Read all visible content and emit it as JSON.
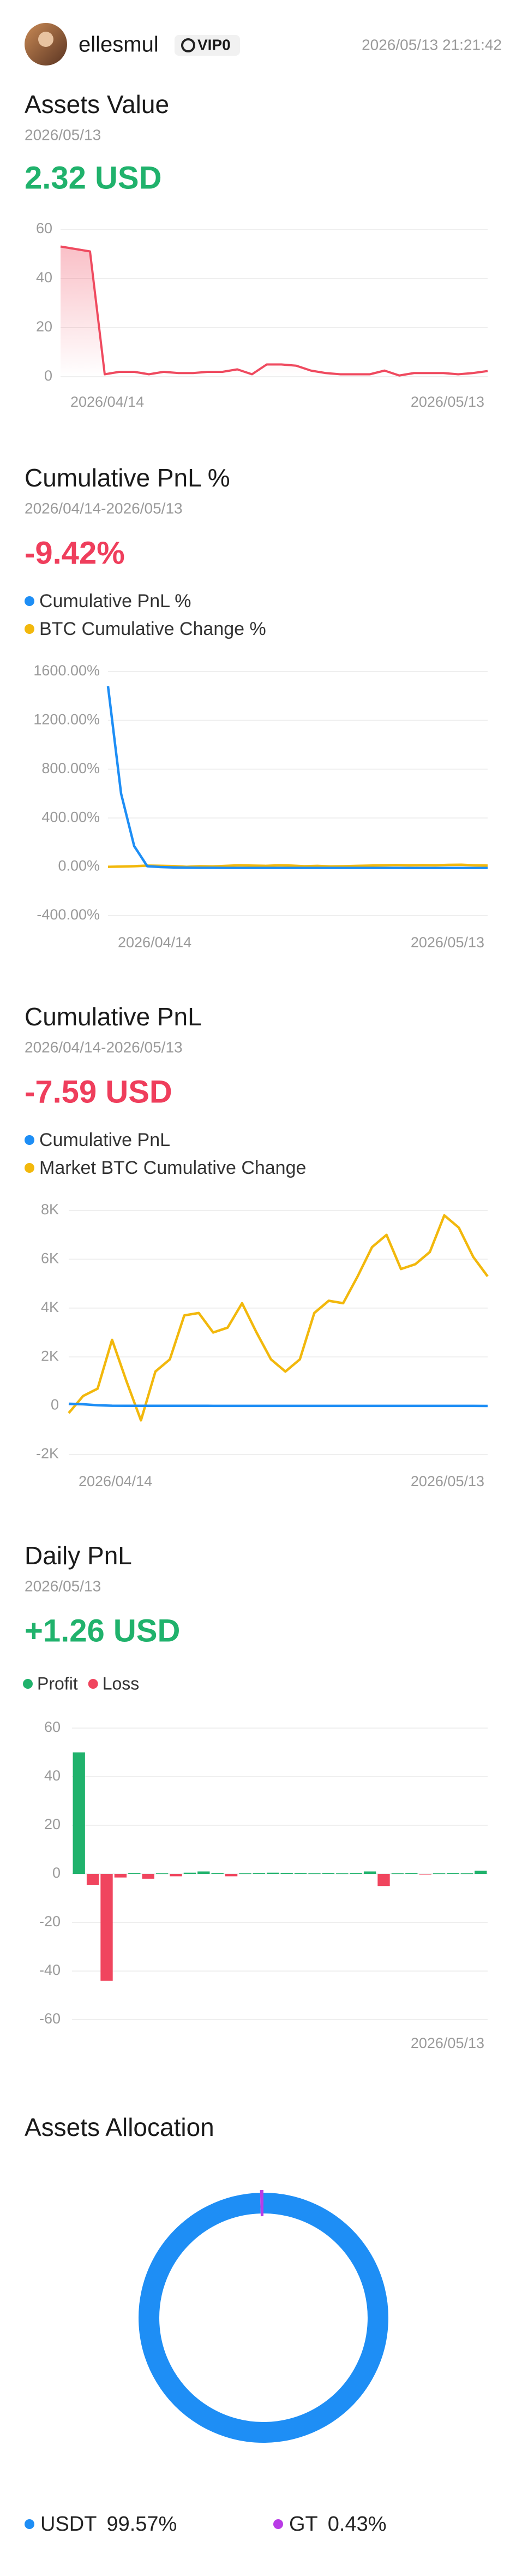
{
  "header": {
    "username": "ellesmul",
    "badge": "VIP0",
    "timestamp": "2026/05/13 21:21:42"
  },
  "chart_data": [
    {
      "type": "area",
      "title": "Assets Value",
      "subtitle": "2026/05/13",
      "headline": "2.32 USD",
      "headline_color": "#20b26c",
      "categories": [
        "2026/04/14",
        null,
        null,
        null,
        null,
        null,
        null,
        null,
        null,
        null,
        null,
        null,
        null,
        null,
        null,
        null,
        null,
        null,
        null,
        null,
        null,
        null,
        null,
        null,
        null,
        null,
        null,
        null,
        null,
        "2026/05/13"
      ],
      "values": [
        53,
        52,
        51,
        1,
        2,
        2,
        1,
        2,
        1.5,
        1.5,
        2,
        2,
        3,
        1,
        5,
        5,
        4.5,
        2.5,
        1.5,
        1,
        1,
        1,
        2.5,
        0.5,
        1.5,
        1.5,
        1.5,
        1,
        1.5,
        2.32
      ],
      "color": "#ef4a5f",
      "ylim": [
        0,
        60
      ],
      "yticks": [
        0,
        20,
        40,
        60
      ],
      "grid": true
    },
    {
      "type": "line",
      "title": "Cumulative PnL %",
      "subtitle": "2026/04/14-2026/05/13",
      "headline": "-9.42%",
      "headline_color": "#ef3e5c",
      "categories": [
        "2026/04/14",
        null,
        null,
        null,
        null,
        null,
        null,
        null,
        null,
        null,
        null,
        null,
        null,
        null,
        null,
        null,
        null,
        null,
        null,
        null,
        null,
        null,
        null,
        null,
        null,
        null,
        null,
        null,
        null,
        "2026/05/13"
      ],
      "series": [
        {
          "name": "Cumulative PnL %",
          "color": "#1e8ef5",
          "values": [
            1480,
            600,
            170,
            5,
            -2,
            -5,
            -7,
            -8,
            -8,
            -9,
            -9,
            -9,
            -9,
            -9,
            -9,
            -9,
            -9,
            -9,
            -9,
            -9,
            -9,
            -9,
            -9,
            -9.5,
            -9.5,
            -9.5,
            -9.5,
            -9.4,
            -9.4,
            -9.42
          ]
        },
        {
          "name": "BTC Cumulative Change %",
          "color": "#f2b80c",
          "values": [
            0,
            2,
            5,
            10,
            8,
            6,
            0,
            5,
            3,
            8,
            12,
            10,
            8,
            12,
            10,
            5,
            8,
            3,
            5,
            8,
            10,
            12,
            15,
            12,
            14,
            13,
            16,
            17,
            12,
            10
          ]
        }
      ],
      "ylim": [
        -400,
        1600
      ],
      "yticks": [
        {
          "value": -400,
          "label": "-400.00%"
        },
        {
          "value": 0,
          "label": "0.00%"
        },
        {
          "value": 400,
          "label": "400.00%"
        },
        {
          "value": 800,
          "label": "800.00%"
        },
        {
          "value": 1200,
          "label": "1200.00%"
        },
        {
          "value": 1600,
          "label": "1600.00%"
        }
      ],
      "grid": true
    },
    {
      "type": "line",
      "title": "Cumulative PnL",
      "subtitle": "2026/04/14-2026/05/13",
      "headline": "-7.59 USD",
      "headline_color": "#ef3e5c",
      "categories": [
        "2026/04/14",
        null,
        null,
        null,
        null,
        null,
        null,
        null,
        null,
        null,
        null,
        null,
        null,
        null,
        null,
        null,
        null,
        null,
        null,
        null,
        null,
        null,
        null,
        null,
        null,
        null,
        null,
        null,
        null,
        "2026/05/13"
      ],
      "series": [
        {
          "name": "Cumulative PnL",
          "color": "#1e8ef5",
          "values": [
            80,
            60,
            20,
            0,
            -2,
            -3,
            -3,
            -4,
            -4,
            -4,
            -5,
            -5,
            -5,
            -5,
            -5,
            -5,
            -6,
            -6,
            -6,
            -6,
            -6,
            -6,
            -7,
            -7,
            -7,
            -7,
            -7.5,
            -7.5,
            -7.5,
            -7.59
          ]
        },
        {
          "name": "Market BTC Cumulative Change",
          "color": "#f2b80c",
          "values": [
            -300,
            400,
            700,
            2700,
            1000,
            -600,
            1400,
            1900,
            3700,
            3800,
            3000,
            3200,
            4200,
            3000,
            1900,
            1400,
            1900,
            3800,
            4300,
            4200,
            5300,
            6500,
            7000,
            5600,
            5800,
            6300,
            7800,
            7300,
            6100,
            5300
          ]
        }
      ],
      "ylim": [
        -2000,
        8000
      ],
      "yticks": [
        {
          "value": -2000,
          "label": "-2K"
        },
        0,
        {
          "value": 2000,
          "label": "2K"
        },
        {
          "value": 4000,
          "label": "4K"
        },
        {
          "value": 6000,
          "label": "6K"
        },
        {
          "value": 8000,
          "label": "8K"
        }
      ],
      "grid": true
    },
    {
      "type": "bar",
      "title": "Daily PnL",
      "subtitle": "2026/05/13",
      "headline": "+1.26 USD",
      "headline_color": "#20b26c",
      "categories": [
        null,
        null,
        null,
        null,
        null,
        null,
        null,
        null,
        null,
        null,
        null,
        null,
        null,
        null,
        null,
        null,
        null,
        null,
        null,
        null,
        null,
        null,
        null,
        null,
        null,
        null,
        null,
        null,
        null,
        "2026/05/13"
      ],
      "values": [
        50,
        -4.5,
        -44,
        -1.5,
        0.3,
        -2,
        0.2,
        -1,
        0.5,
        1,
        0.3,
        -1,
        0.2,
        0.3,
        0.5,
        0.4,
        0.3,
        0.2,
        0.3,
        0.2,
        0.3,
        1,
        -5,
        0.2,
        0.3,
        -0.3,
        0.2,
        0.3,
        0.2,
        1.26
      ],
      "series": [
        {
          "name": "Profit",
          "color": "#20b26c"
        },
        {
          "name": "Loss",
          "color": "#f0455e"
        }
      ],
      "ylim": [
        -60,
        60
      ],
      "yticks": [
        -60,
        -40,
        -20,
        0,
        20,
        40,
        60
      ],
      "grid": true
    },
    {
      "type": "pie",
      "title": "Assets Allocation",
      "categories": [
        "USDT",
        "GT"
      ],
      "values": [
        99.57,
        0.43
      ],
      "value_labels": [
        "99.57%",
        "0.43%"
      ],
      "colors": [
        "#1e8ef5",
        "#b93be6"
      ]
    }
  ]
}
